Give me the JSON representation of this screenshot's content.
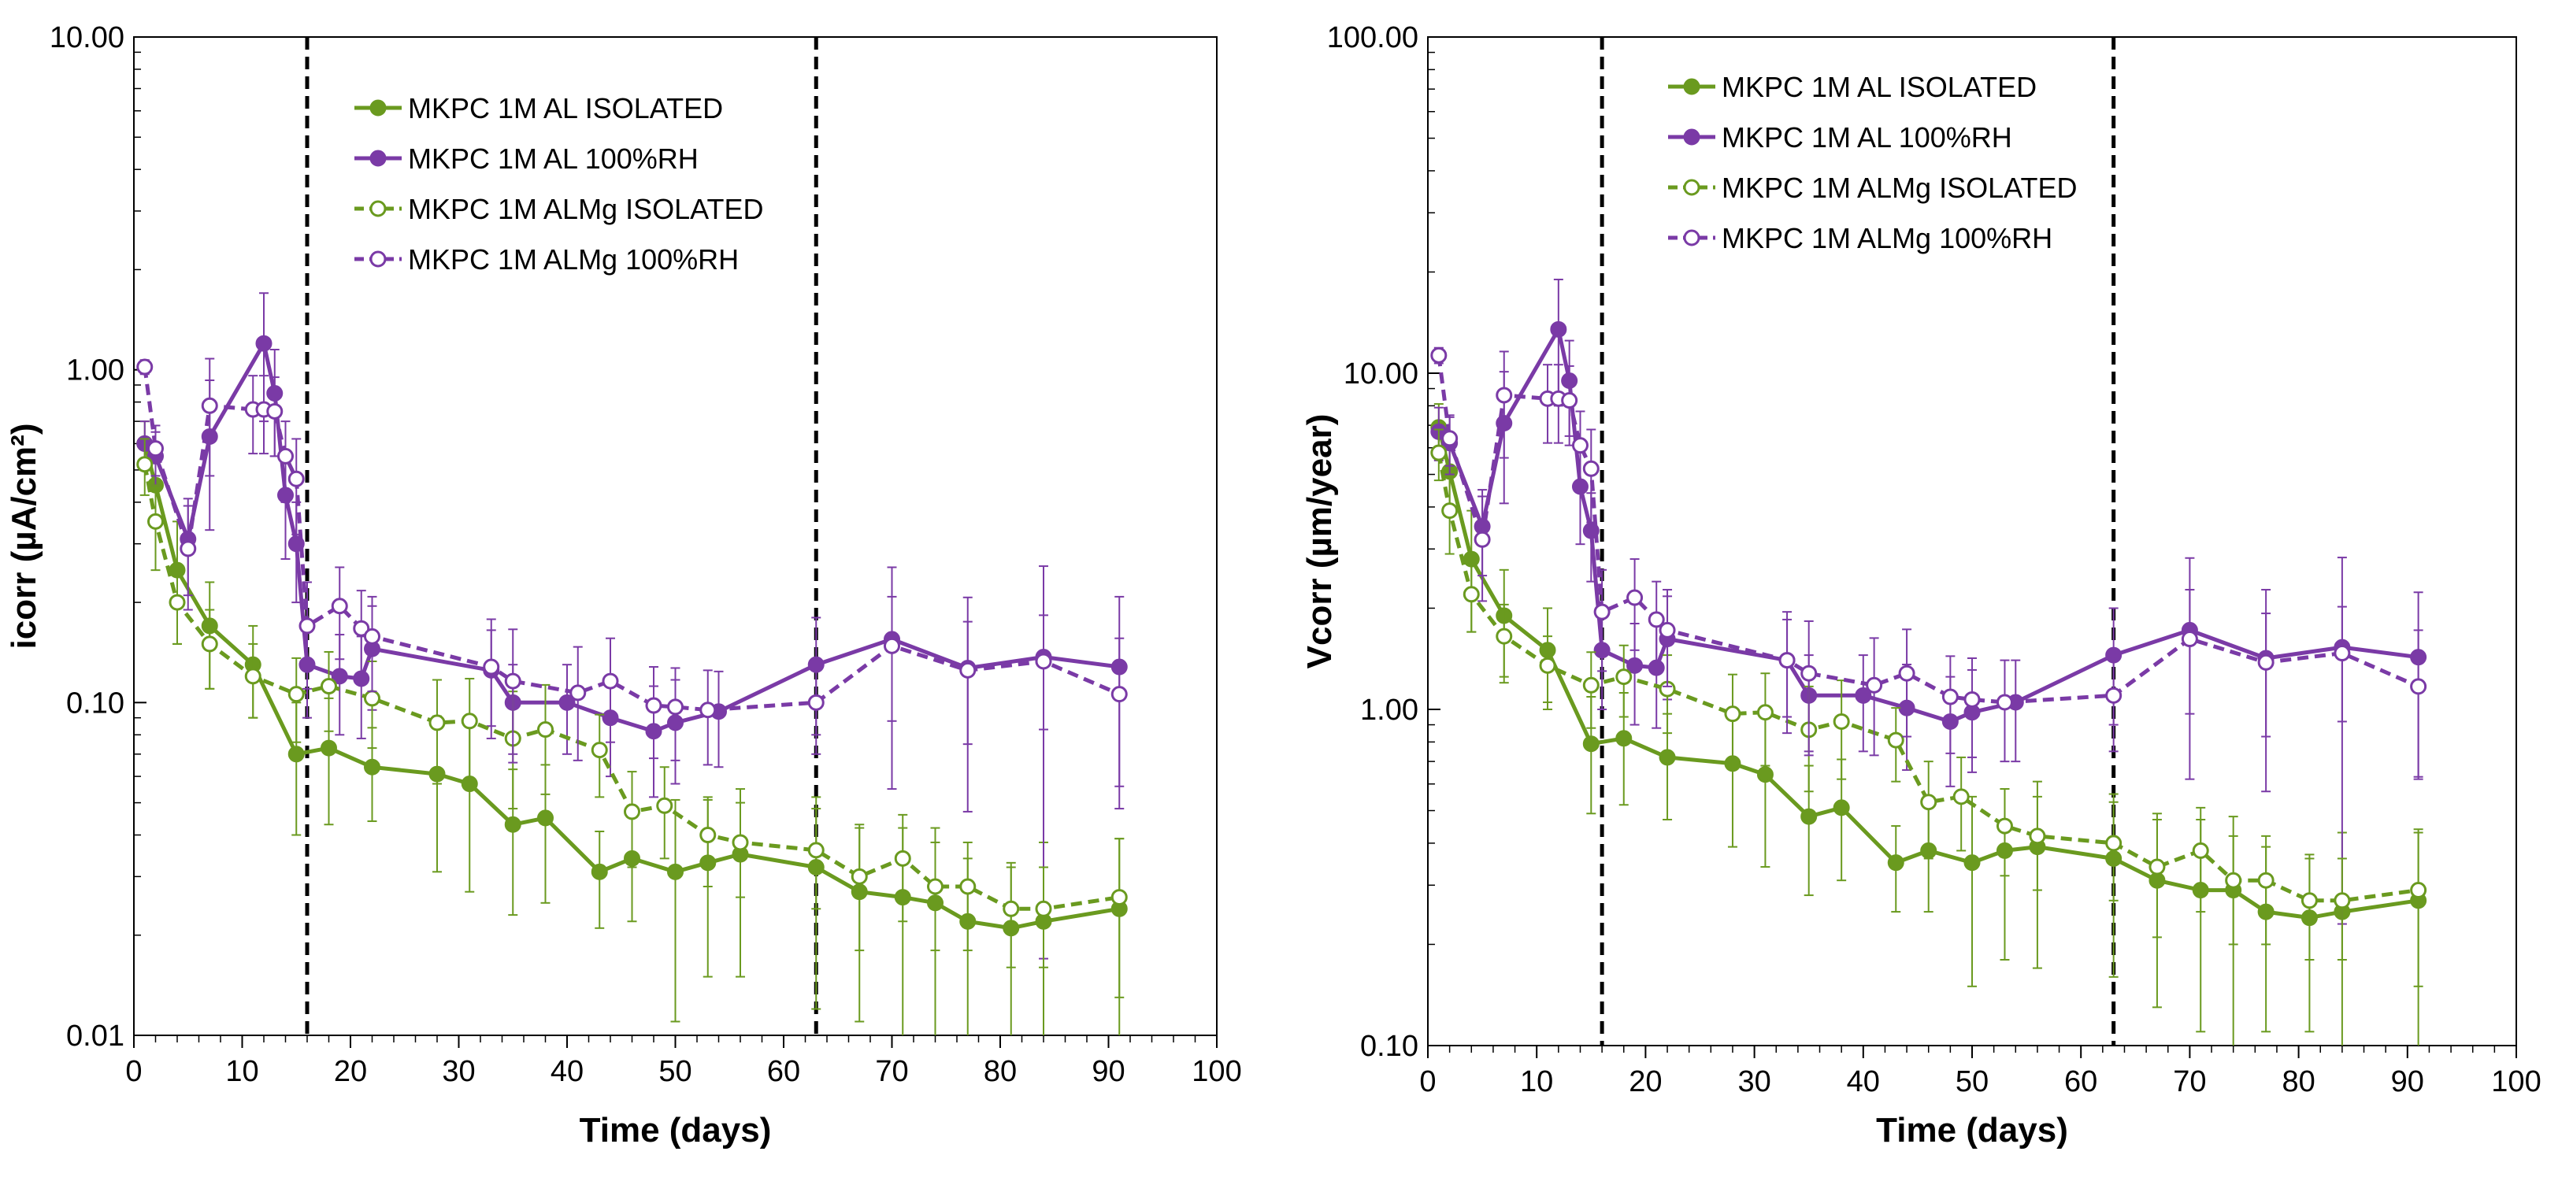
{
  "chart_data": [
    {
      "type": "line",
      "title": "",
      "xlabel": "Time (days)",
      "ylabel": "icorr (µA/cm²)",
      "yscale": "log",
      "xlim": [
        0,
        100
      ],
      "ylim": [
        0.01,
        10
      ],
      "x_ticks": [
        "0",
        "10",
        "20",
        "30",
        "40",
        "50",
        "60",
        "70",
        "80",
        "90",
        "100"
      ],
      "y_ticks": [
        "0.01",
        "0.10",
        "1.00",
        "10.00"
      ],
      "legend_position": "top-center",
      "vlines": [
        16,
        63
      ],
      "series": [
        {
          "name": "MKPC 1M AL ISOLATED",
          "color": "#6a9a1f",
          "style": "solid",
          "marker": "filled-circle",
          "x": [
            1,
            2,
            4,
            7,
            11,
            15,
            18,
            22,
            28,
            31,
            35,
            38,
            43,
            46,
            50,
            53,
            56,
            63,
            67,
            71,
            74,
            77,
            81,
            84,
            91
          ],
          "y": [
            0.6,
            0.45,
            0.25,
            0.17,
            0.13,
            0.07,
            0.073,
            0.064,
            0.061,
            0.057,
            0.043,
            0.045,
            0.031,
            0.034,
            0.031,
            0.033,
            0.035,
            0.032,
            0.027,
            0.026,
            0.025,
            0.022,
            0.021,
            0.022,
            0.024
          ],
          "err": [
            0.1,
            0.1,
            0.1,
            0.06,
            0.04,
            0.03,
            0.03,
            0.02,
            0.03,
            0.03,
            0.02,
            0.02,
            0.01,
            0.012,
            0.02,
            0.018,
            0.02,
            0.02,
            0.016,
            0.016,
            0.017,
            0.012,
            0.012,
            0.016,
            0.015
          ]
        },
        {
          "name": "MKPC 1M AL 100%RH",
          "color": "#7a3aa6",
          "style": "solid",
          "marker": "filled-circle",
          "x": [
            1,
            2,
            5,
            7,
            12,
            13,
            14,
            15,
            16,
            19,
            21,
            22,
            33,
            35,
            40,
            44,
            48,
            50,
            54,
            63,
            70,
            77,
            84,
            91
          ],
          "y": [
            0.6,
            0.55,
            0.31,
            0.63,
            1.2,
            0.85,
            0.42,
            0.3,
            0.13,
            0.12,
            0.118,
            0.145,
            0.125,
            0.1,
            0.1,
            0.09,
            0.082,
            0.087,
            0.094,
            0.13,
            0.155,
            0.127,
            0.137,
            0.128
          ],
          "err": [
            0.1,
            0.1,
            0.1,
            0.3,
            0.5,
            0.3,
            0.15,
            0.1,
            0.04,
            0.04,
            0.04,
            0.05,
            0.04,
            0.03,
            0.03,
            0.03,
            0.03,
            0.03,
            0.03,
            0.05,
            0.1,
            0.08,
            0.12,
            0.08
          ]
        },
        {
          "name": "MKPC 1M ALMg ISOLATED",
          "color": "#6a9a1f",
          "style": "dashed",
          "marker": "open-circle",
          "x": [
            1,
            2,
            4,
            7,
            11,
            15,
            18,
            22,
            28,
            31,
            35,
            38,
            43,
            46,
            49,
            53,
            56,
            63,
            67,
            71,
            74,
            77,
            81,
            84,
            91
          ],
          "y": [
            0.52,
            0.35,
            0.2,
            0.15,
            0.12,
            0.106,
            0.112,
            0.103,
            0.087,
            0.088,
            0.078,
            0.083,
            0.072,
            0.047,
            0.049,
            0.04,
            0.038,
            0.036,
            0.03,
            0.034,
            0.028,
            0.028,
            0.024,
            0.024,
            0.026
          ],
          "err": [
            0.1,
            0.1,
            0.05,
            0.04,
            0.03,
            0.03,
            0.03,
            0.03,
            0.03,
            0.03,
            0.03,
            0.03,
            0.02,
            0.015,
            0.015,
            0.012,
            0.012,
            0.012,
            0.012,
            0.012,
            0.01,
            0.01,
            0.008,
            0.008,
            0.013
          ]
        },
        {
          "name": "MKPC 1M ALMg 100%RH",
          "color": "#7a3aa6",
          "style": "dashed",
          "marker": "open-circle",
          "x": [
            1,
            2,
            5,
            7,
            11,
            12,
            13,
            14,
            15,
            16,
            19,
            21,
            22,
            33,
            35,
            41,
            44,
            48,
            50,
            53,
            63,
            70,
            77,
            84,
            91
          ],
          "y": [
            1.02,
            0.58,
            0.29,
            0.78,
            0.76,
            0.76,
            0.75,
            0.55,
            0.47,
            0.17,
            0.195,
            0.167,
            0.158,
            0.128,
            0.116,
            0.107,
            0.116,
            0.098,
            0.097,
            0.095,
            0.1,
            0.148,
            0.125,
            0.133,
            0.106
          ],
          "err": [
            0.05,
            0.1,
            0.1,
            0.3,
            0.2,
            0.2,
            0.2,
            0.15,
            0.15,
            0.06,
            0.06,
            0.05,
            0.05,
            0.05,
            0.05,
            0.04,
            0.04,
            0.03,
            0.03,
            0.03,
            0.03,
            0.06,
            0.05,
            0.05,
            0.05
          ]
        }
      ]
    },
    {
      "type": "line",
      "title": "",
      "xlabel": "Time (days)",
      "ylabel": "Vcorr (µm/year)",
      "yscale": "log",
      "xlim": [
        0,
        100
      ],
      "ylim": [
        0.1,
        100
      ],
      "x_ticks": [
        "0",
        "10",
        "20",
        "30",
        "40",
        "50",
        "60",
        "70",
        "80",
        "90",
        "100"
      ],
      "y_ticks": [
        "0.10",
        "1.00",
        "10.00",
        "100.00"
      ],
      "legend_position": "top-center",
      "vlines": [
        16,
        63
      ],
      "series": [
        {
          "name": "MKPC 1M AL ISOLATED",
          "color": "#6a9a1f",
          "style": "solid",
          "marker": "filled-circle",
          "x": [
            1,
            2,
            4,
            7,
            11,
            15,
            18,
            22,
            28,
            31,
            35,
            38,
            43,
            46,
            50,
            53,
            56,
            63,
            67,
            71,
            74,
            77,
            81,
            84,
            91
          ],
          "y": [
            6.9,
            5.1,
            2.8,
            1.9,
            1.5,
            0.79,
            0.82,
            0.72,
            0.69,
            0.64,
            0.48,
            0.51,
            0.35,
            0.38,
            0.35,
            0.38,
            0.39,
            0.36,
            0.31,
            0.29,
            0.29,
            0.25,
            0.24,
            0.25,
            0.27
          ],
          "err": [
            1.2,
            1.1,
            1.1,
            0.7,
            0.5,
            0.3,
            0.3,
            0.25,
            0.3,
            0.3,
            0.2,
            0.2,
            0.1,
            0.13,
            0.2,
            0.2,
            0.22,
            0.2,
            0.18,
            0.18,
            0.19,
            0.14,
            0.13,
            0.18,
            0.17
          ]
        },
        {
          "name": "MKPC 1M AL 100%RH",
          "color": "#7a3aa6",
          "style": "solid",
          "marker": "filled-circle",
          "x": [
            1,
            2,
            5,
            7,
            12,
            13,
            14,
            15,
            16,
            19,
            21,
            22,
            33,
            35,
            40,
            44,
            48,
            50,
            54,
            63,
            70,
            77,
            84,
            91
          ],
          "y": [
            6.7,
            6.2,
            3.5,
            7.1,
            13.5,
            9.5,
            4.6,
            3.4,
            1.5,
            1.35,
            1.33,
            1.62,
            1.4,
            1.1,
            1.1,
            1.01,
            0.92,
            0.98,
            1.05,
            1.45,
            1.72,
            1.42,
            1.53,
            1.43
          ],
          "err": [
            1.2,
            1.2,
            1.0,
            3.0,
            5.5,
            3.0,
            1.5,
            1.0,
            0.5,
            0.45,
            0.45,
            0.55,
            0.45,
            0.35,
            0.35,
            0.35,
            0.33,
            0.33,
            0.35,
            0.55,
            1.1,
            0.85,
            1.3,
            0.8
          ]
        },
        {
          "name": "MKPC 1M ALMg ISOLATED",
          "color": "#6a9a1f",
          "style": "dashed",
          "marker": "open-circle",
          "x": [
            1,
            2,
            4,
            7,
            11,
            15,
            18,
            22,
            28,
            31,
            35,
            38,
            43,
            46,
            49,
            53,
            56,
            63,
            67,
            71,
            74,
            77,
            81,
            84,
            91
          ],
          "y": [
            5.8,
            3.9,
            2.2,
            1.65,
            1.35,
            1.18,
            1.25,
            1.15,
            0.97,
            0.98,
            0.87,
            0.92,
            0.81,
            0.53,
            0.55,
            0.45,
            0.42,
            0.4,
            0.34,
            0.38,
            0.31,
            0.31,
            0.27,
            0.27,
            0.29
          ],
          "err": [
            1.0,
            1.0,
            0.5,
            0.4,
            0.3,
            0.3,
            0.3,
            0.3,
            0.3,
            0.3,
            0.3,
            0.3,
            0.2,
            0.17,
            0.17,
            0.13,
            0.13,
            0.13,
            0.13,
            0.13,
            0.11,
            0.11,
            0.09,
            0.09,
            0.14
          ]
        },
        {
          "name": "MKPC 1M ALMg 100%RH",
          "color": "#7a3aa6",
          "style": "dashed",
          "marker": "open-circle",
          "x": [
            1,
            2,
            5,
            7,
            11,
            12,
            13,
            14,
            15,
            16,
            19,
            21,
            22,
            33,
            35,
            41,
            44,
            48,
            50,
            53,
            63,
            70,
            77,
            84,
            91
          ],
          "y": [
            11.3,
            6.4,
            3.2,
            8.6,
            8.4,
            8.4,
            8.3,
            6.1,
            5.2,
            1.95,
            2.15,
            1.85,
            1.72,
            1.4,
            1.28,
            1.18,
            1.28,
            1.09,
            1.07,
            1.05,
            1.1,
            1.62,
            1.38,
            1.47,
            1.17
          ],
          "err": [
            0.6,
            1.1,
            1.1,
            3.0,
            2.2,
            2.2,
            2.2,
            1.6,
            1.6,
            0.65,
            0.65,
            0.55,
            0.55,
            0.55,
            0.55,
            0.45,
            0.45,
            0.35,
            0.35,
            0.35,
            0.35,
            0.65,
            0.55,
            0.55,
            0.55
          ]
        }
      ]
    }
  ]
}
